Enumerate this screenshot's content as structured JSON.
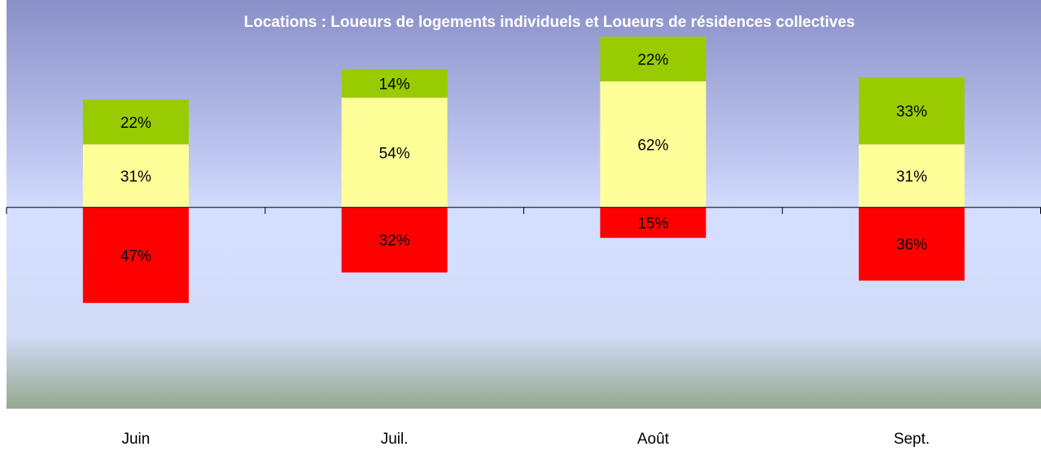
{
  "chart_data": {
    "type": "bar",
    "stacked": true,
    "title": "Locations : Loueurs de logements individuels et Loueurs de résidences collectives",
    "categories": [
      "Juin",
      "Juil.",
      "Août",
      "Sept."
    ],
    "ylim": [
      -99,
      102
    ],
    "series": [
      {
        "color": "#ff0000",
        "values": [
          -47,
          -32,
          -15,
          -36
        ],
        "value_labels": [
          "47%",
          "32%",
          "15%",
          "36%"
        ]
      },
      {
        "color": "#ffff99",
        "values": [
          31,
          54,
          62,
          31
        ],
        "value_labels": [
          "31%",
          "54%",
          "62%",
          "31%"
        ]
      },
      {
        "color": "#99cc00",
        "values": [
          22,
          14,
          22,
          33
        ],
        "value_labels": [
          "22%",
          "14%",
          "22%",
          "33%"
        ]
      }
    ]
  }
}
